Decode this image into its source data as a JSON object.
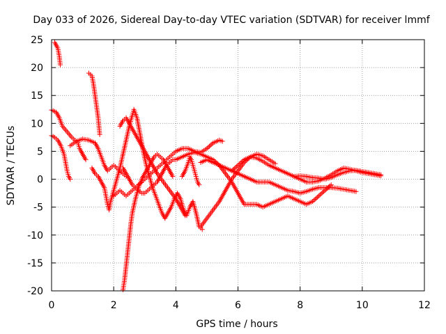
{
  "chart_data": {
    "type": "scatter",
    "title": "Day 033 of 2026, Sidereal Day-to-day VTEC variation (SDTVAR) for receiver lmmf",
    "xlabel": "GPS time / hours",
    "ylabel": "SDTVAR / TECUs",
    "xlim": [
      0,
      12
    ],
    "ylim": [
      -20,
      25
    ],
    "xticks": [
      0,
      2,
      4,
      6,
      8,
      10,
      12
    ],
    "yticks": [
      -20,
      -15,
      -10,
      -5,
      0,
      5,
      10,
      15,
      20,
      25
    ],
    "grid": true,
    "marker": "+",
    "color": "#ff0000",
    "series": [
      {
        "name": "s1",
        "points": [
          [
            0.1,
            24.5
          ],
          [
            0.15,
            24.0
          ],
          [
            0.2,
            23.5
          ],
          [
            0.25,
            22.0
          ],
          [
            0.28,
            20.5
          ]
        ]
      },
      {
        "name": "s2",
        "points": [
          [
            0.0,
            12.4
          ],
          [
            0.15,
            12.0
          ],
          [
            0.25,
            11.0
          ],
          [
            0.35,
            9.5
          ],
          [
            0.5,
            8.5
          ],
          [
            0.65,
            7.5
          ],
          [
            0.75,
            7.0
          ],
          [
            0.85,
            6.5
          ],
          [
            0.9,
            5.5
          ],
          [
            1.0,
            4.5
          ],
          [
            1.1,
            3.5
          ]
        ]
      },
      {
        "name": "s3",
        "points": [
          [
            0.0,
            7.8
          ],
          [
            0.1,
            7.5
          ],
          [
            0.2,
            7.0
          ],
          [
            0.3,
            6.0
          ],
          [
            0.4,
            4.5
          ],
          [
            0.45,
            3.0
          ],
          [
            0.5,
            1.5
          ],
          [
            0.55,
            0.5
          ],
          [
            0.6,
            0.0
          ]
        ]
      },
      {
        "name": "s4",
        "points": [
          [
            0.6,
            6.0
          ],
          [
            0.8,
            6.8
          ],
          [
            1.0,
            7.2
          ],
          [
            1.2,
            7.0
          ],
          [
            1.4,
            6.5
          ],
          [
            1.5,
            5.5
          ],
          [
            1.6,
            4.0
          ],
          [
            1.7,
            2.5
          ],
          [
            1.8,
            1.5
          ],
          [
            1.9,
            2.0
          ],
          [
            2.0,
            2.5
          ],
          [
            2.1,
            2.0
          ],
          [
            2.2,
            1.5
          ],
          [
            2.3,
            1.0
          ],
          [
            2.4,
            0.5
          ]
        ]
      },
      {
        "name": "s5",
        "points": [
          [
            1.2,
            19.0
          ],
          [
            1.3,
            18.5
          ],
          [
            1.35,
            17.0
          ],
          [
            1.4,
            15.0
          ],
          [
            1.45,
            13.0
          ],
          [
            1.5,
            11.0
          ],
          [
            1.55,
            8.0
          ]
        ]
      },
      {
        "name": "s6",
        "points": [
          [
            1.3,
            2.0
          ],
          [
            1.4,
            1.0
          ],
          [
            1.5,
            0.5
          ],
          [
            1.6,
            -0.5
          ],
          [
            1.7,
            -1.5
          ],
          [
            1.75,
            -3.0
          ],
          [
            1.8,
            -4.5
          ],
          [
            1.85,
            -5.5
          ],
          [
            1.9,
            -4.0
          ],
          [
            2.0,
            -2.0
          ],
          [
            2.1,
            0.0
          ],
          [
            2.2,
            2.0
          ],
          [
            2.3,
            4.5
          ],
          [
            2.4,
            7.0
          ],
          [
            2.5,
            9.5
          ],
          [
            2.6,
            11.5
          ],
          [
            2.65,
            12.5
          ],
          [
            2.75,
            11.0
          ],
          [
            2.85,
            8.0
          ],
          [
            2.95,
            5.0
          ],
          [
            3.05,
            2.5
          ],
          [
            3.15,
            0.5
          ],
          [
            3.25,
            -1.5
          ],
          [
            3.35,
            -3.0
          ],
          [
            3.45,
            -4.5
          ],
          [
            3.55,
            -6.0
          ],
          [
            3.65,
            -7.0
          ],
          [
            3.75,
            -6.0
          ],
          [
            3.85,
            -5.0
          ],
          [
            3.95,
            -3.5
          ],
          [
            4.05,
            -2.5
          ],
          [
            4.15,
            -3.5
          ],
          [
            4.25,
            -5.5
          ],
          [
            4.35,
            -6.5
          ],
          [
            4.45,
            -5.0
          ],
          [
            4.55,
            -4.0
          ],
          [
            4.65,
            -6.0
          ],
          [
            4.75,
            -8.5
          ],
          [
            4.85,
            -9.0
          ]
        ]
      },
      {
        "name": "s7",
        "points": [
          [
            2.0,
            -3.0
          ],
          [
            2.1,
            -2.5
          ],
          [
            2.2,
            -2.0
          ],
          [
            2.3,
            -2.5
          ],
          [
            2.4,
            -3.0
          ],
          [
            2.5,
            -2.5
          ],
          [
            2.6,
            -2.0
          ],
          [
            2.7,
            -1.5
          ],
          [
            2.8,
            -1.0
          ],
          [
            2.9,
            -0.5
          ],
          [
            3.0,
            0.0
          ],
          [
            3.1,
            0.5
          ],
          [
            3.2,
            1.0
          ],
          [
            3.3,
            1.5
          ],
          [
            3.4,
            2.0
          ],
          [
            3.5,
            2.5
          ],
          [
            3.6,
            3.0
          ],
          [
            3.7,
            3.5
          ],
          [
            3.8,
            4.0
          ],
          [
            3.9,
            4.5
          ],
          [
            4.0,
            5.0
          ],
          [
            4.2,
            5.5
          ],
          [
            4.4,
            5.5
          ],
          [
            4.6,
            5.0
          ],
          [
            4.8,
            4.8
          ],
          [
            5.0,
            5.5
          ],
          [
            5.2,
            6.5
          ],
          [
            5.4,
            7.0
          ],
          [
            5.5,
            6.8
          ]
        ]
      },
      {
        "name": "s8",
        "points": [
          [
            2.3,
            -19.8
          ],
          [
            2.35,
            -18.0
          ],
          [
            2.4,
            -15.5
          ],
          [
            2.45,
            -13.0
          ],
          [
            2.5,
            -10.5
          ],
          [
            2.55,
            -8.0
          ],
          [
            2.6,
            -6.0
          ],
          [
            2.7,
            -3.5
          ],
          [
            2.8,
            -1.5
          ],
          [
            2.9,
            0.0
          ],
          [
            3.0,
            1.0
          ],
          [
            3.1,
            2.0
          ],
          [
            3.2,
            3.0
          ],
          [
            3.3,
            4.0
          ],
          [
            3.4,
            4.5
          ],
          [
            3.5,
            4.0
          ],
          [
            3.6,
            3.5
          ],
          [
            3.7,
            2.5
          ],
          [
            3.8,
            1.5
          ],
          [
            3.9,
            0.5
          ]
        ]
      },
      {
        "name": "s9",
        "points": [
          [
            2.3,
            2.0
          ],
          [
            2.4,
            1.0
          ],
          [
            2.5,
            0.0
          ],
          [
            2.6,
            -1.0
          ],
          [
            2.7,
            -1.5
          ],
          [
            2.8,
            -2.0
          ],
          [
            2.9,
            -2.5
          ],
          [
            3.0,
            -2.5
          ],
          [
            3.1,
            -2.0
          ],
          [
            3.2,
            -1.5
          ],
          [
            3.3,
            -1.0
          ],
          [
            3.4,
            -0.5
          ],
          [
            3.5,
            0.5
          ],
          [
            3.6,
            1.5
          ],
          [
            3.7,
            2.5
          ],
          [
            3.8,
            3.0
          ],
          [
            3.9,
            3.5
          ],
          [
            4.0,
            3.5
          ],
          [
            4.2,
            4.0
          ],
          [
            4.4,
            4.5
          ],
          [
            4.6,
            4.8
          ],
          [
            4.8,
            4.5
          ],
          [
            5.0,
            4.0
          ],
          [
            5.2,
            3.5
          ],
          [
            5.4,
            2.5
          ],
          [
            5.6,
            1.0
          ],
          [
            5.8,
            -0.5
          ],
          [
            6.0,
            -2.5
          ],
          [
            6.1,
            -3.5
          ],
          [
            6.2,
            -4.5
          ],
          [
            6.4,
            -4.5
          ],
          [
            6.6,
            -4.5
          ],
          [
            6.8,
            -5.0
          ],
          [
            7.0,
            -4.5
          ],
          [
            7.2,
            -4.0
          ],
          [
            7.4,
            -3.5
          ],
          [
            7.6,
            -3.0
          ],
          [
            7.8,
            -3.5
          ],
          [
            8.0,
            -4.0
          ],
          [
            8.2,
            -4.5
          ],
          [
            8.4,
            -4.0
          ],
          [
            8.6,
            -3.0
          ],
          [
            8.8,
            -2.0
          ],
          [
            9.0,
            -1.0
          ]
        ]
      },
      {
        "name": "s10",
        "points": [
          [
            2.2,
            9.5
          ],
          [
            2.3,
            10.5
          ],
          [
            2.4,
            11.0
          ],
          [
            2.5,
            10.0
          ],
          [
            2.6,
            9.0
          ],
          [
            2.8,
            7.0
          ],
          [
            3.0,
            5.0
          ],
          [
            3.2,
            3.0
          ],
          [
            3.4,
            1.0
          ],
          [
            3.6,
            -0.5
          ],
          [
            3.8,
            -2.0
          ],
          [
            4.0,
            -3.5
          ],
          [
            4.1,
            -4.5
          ],
          [
            4.2,
            -5.5
          ],
          [
            4.3,
            -6.5
          ]
        ]
      },
      {
        "name": "s11",
        "points": [
          [
            4.2,
            0.5
          ],
          [
            4.3,
            1.5
          ],
          [
            4.4,
            3.0
          ],
          [
            4.45,
            4.0
          ],
          [
            4.5,
            3.5
          ],
          [
            4.55,
            2.5
          ],
          [
            4.6,
            1.5
          ],
          [
            4.65,
            0.5
          ],
          [
            4.7,
            -0.5
          ],
          [
            4.75,
            -1.0
          ]
        ]
      },
      {
        "name": "s12",
        "points": [
          [
            4.8,
            -8.5
          ],
          [
            5.0,
            -7.0
          ],
          [
            5.2,
            -5.5
          ],
          [
            5.4,
            -4.0
          ],
          [
            5.6,
            -2.0
          ],
          [
            5.8,
            0.0
          ],
          [
            6.0,
            1.5
          ],
          [
            6.2,
            3.0
          ],
          [
            6.4,
            4.0
          ],
          [
            6.6,
            4.5
          ],
          [
            6.8,
            4.2
          ],
          [
            7.0,
            3.5
          ],
          [
            7.2,
            2.8
          ]
        ]
      },
      {
        "name": "s13",
        "points": [
          [
            4.8,
            3.0
          ],
          [
            5.0,
            3.5
          ],
          [
            5.2,
            3.0
          ],
          [
            5.4,
            2.5
          ],
          [
            5.6,
            2.0
          ],
          [
            5.8,
            1.5
          ],
          [
            6.0,
            1.0
          ],
          [
            6.2,
            0.5
          ],
          [
            6.4,
            0.0
          ],
          [
            6.6,
            -0.5
          ],
          [
            6.8,
            -0.5
          ],
          [
            7.0,
            -0.5
          ],
          [
            7.2,
            -1.0
          ],
          [
            7.4,
            -1.5
          ],
          [
            7.6,
            -2.0
          ],
          [
            7.8,
            -2.2
          ],
          [
            8.0,
            -2.5
          ],
          [
            8.2,
            -2.2
          ],
          [
            8.4,
            -1.8
          ],
          [
            8.6,
            -1.5
          ],
          [
            8.8,
            -1.5
          ],
          [
            9.0,
            -1.5
          ],
          [
            9.2,
            -1.6
          ],
          [
            9.4,
            -1.8
          ],
          [
            9.6,
            -2.0
          ],
          [
            9.8,
            -2.2
          ]
        ]
      },
      {
        "name": "s14",
        "points": [
          [
            5.8,
            1.5
          ],
          [
            6.0,
            2.5
          ],
          [
            6.2,
            3.5
          ],
          [
            6.4,
            4.0
          ],
          [
            6.6,
            3.8
          ],
          [
            6.8,
            3.2
          ],
          [
            7.0,
            2.5
          ],
          [
            7.2,
            2.0
          ],
          [
            7.4,
            1.5
          ],
          [
            7.6,
            1.0
          ],
          [
            7.8,
            0.5
          ],
          [
            8.0,
            0.0
          ],
          [
            8.2,
            -0.5
          ],
          [
            8.4,
            -0.5
          ],
          [
            8.6,
            -0.3
          ],
          [
            8.8,
            0.2
          ],
          [
            9.0,
            0.8
          ],
          [
            9.2,
            1.5
          ],
          [
            9.4,
            2.0
          ],
          [
            9.6,
            1.8
          ],
          [
            9.8,
            1.5
          ],
          [
            10.0,
            1.2
          ],
          [
            10.2,
            1.0
          ],
          [
            10.4,
            0.8
          ],
          [
            10.6,
            0.6
          ]
        ]
      },
      {
        "name": "s15",
        "points": [
          [
            7.8,
            0.5
          ],
          [
            8.0,
            0.6
          ],
          [
            8.2,
            0.5
          ],
          [
            8.4,
            0.3
          ],
          [
            8.6,
            0.2
          ],
          [
            8.8,
            0.0
          ],
          [
            9.0,
            0.3
          ],
          [
            9.2,
            0.8
          ],
          [
            9.4,
            1.2
          ],
          [
            9.6,
            1.5
          ],
          [
            9.8,
            1.6
          ],
          [
            10.0,
            1.4
          ],
          [
            10.2,
            1.2
          ],
          [
            10.4,
            1.0
          ],
          [
            10.6,
            0.8
          ]
        ]
      }
    ]
  }
}
